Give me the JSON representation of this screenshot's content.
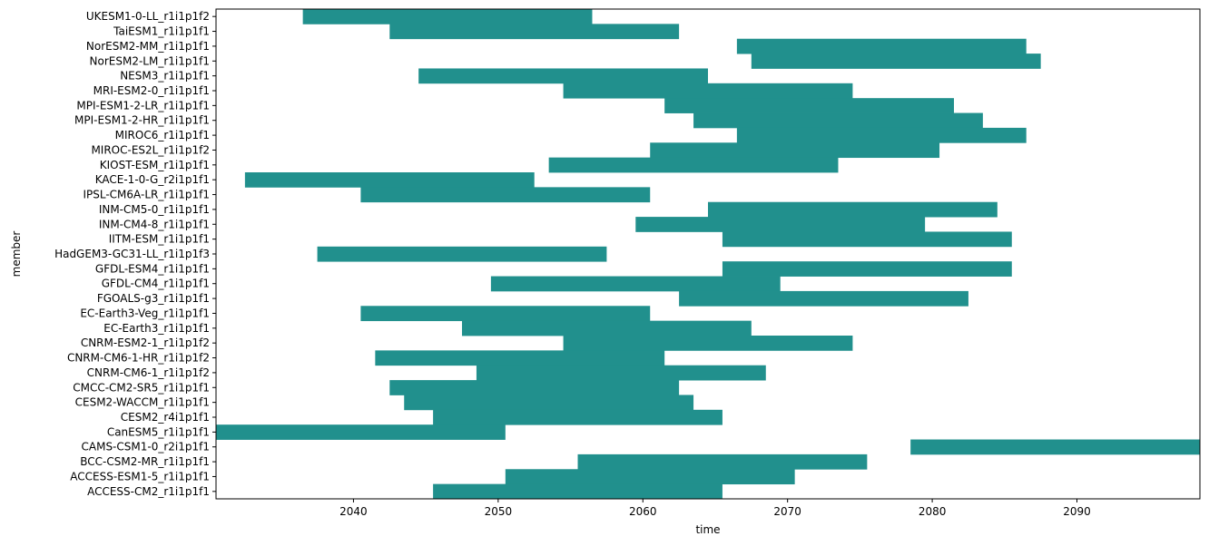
{
  "chart_data": {
    "type": "bar",
    "orientation": "horizontal",
    "title": "",
    "xlabel": "time",
    "ylabel": "member",
    "xlim": [
      2030.5,
      2098.5
    ],
    "xticks": [
      2040,
      2050,
      2060,
      2070,
      2080,
      2090
    ],
    "grid": false,
    "legend": "none",
    "colors": {
      "bar": "#21908d"
    },
    "members": [
      {
        "label": "UKESM1-0-LL_r1i1p1f2",
        "start": 2036.5,
        "end": 2056.5
      },
      {
        "label": "TaiESM1_r1i1p1f1",
        "start": 2042.5,
        "end": 2062.5
      },
      {
        "label": "NorESM2-MM_r1i1p1f1",
        "start": 2066.5,
        "end": 2086.5
      },
      {
        "label": "NorESM2-LM_r1i1p1f1",
        "start": 2067.5,
        "end": 2087.5
      },
      {
        "label": "NESM3_r1i1p1f1",
        "start": 2044.5,
        "end": 2064.5
      },
      {
        "label": "MRI-ESM2-0_r1i1p1f1",
        "start": 2054.5,
        "end": 2074.5
      },
      {
        "label": "MPI-ESM1-2-LR_r1i1p1f1",
        "start": 2061.5,
        "end": 2081.5
      },
      {
        "label": "MPI-ESM1-2-HR_r1i1p1f1",
        "start": 2063.5,
        "end": 2083.5
      },
      {
        "label": "MIROC6_r1i1p1f1",
        "start": 2066.5,
        "end": 2086.5
      },
      {
        "label": "MIROC-ES2L_r1i1p1f2",
        "start": 2060.5,
        "end": 2080.5
      },
      {
        "label": "KIOST-ESM_r1i1p1f1",
        "start": 2053.5,
        "end": 2073.5
      },
      {
        "label": "KACE-1-0-G_r2i1p1f1",
        "start": 2032.5,
        "end": 2052.5
      },
      {
        "label": "IPSL-CM6A-LR_r1i1p1f1",
        "start": 2040.5,
        "end": 2060.5
      },
      {
        "label": "INM-CM5-0_r1i1p1f1",
        "start": 2064.5,
        "end": 2084.5
      },
      {
        "label": "INM-CM4-8_r1i1p1f1",
        "start": 2059.5,
        "end": 2079.5
      },
      {
        "label": "IITM-ESM_r1i1p1f1",
        "start": 2065.5,
        "end": 2085.5
      },
      {
        "label": "HadGEM3-GC31-LL_r1i1p1f3",
        "start": 2037.5,
        "end": 2057.5
      },
      {
        "label": "GFDL-ESM4_r1i1p1f1",
        "start": 2065.5,
        "end": 2085.5
      },
      {
        "label": "GFDL-CM4_r1i1p1f1",
        "start": 2049.5,
        "end": 2069.5
      },
      {
        "label": "FGOALS-g3_r1i1p1f1",
        "start": 2062.5,
        "end": 2082.5
      },
      {
        "label": "EC-Earth3-Veg_r1i1p1f1",
        "start": 2040.5,
        "end": 2060.5
      },
      {
        "label": "EC-Earth3_r1i1p1f1",
        "start": 2047.5,
        "end": 2067.5
      },
      {
        "label": "CNRM-ESM2-1_r1i1p1f2",
        "start": 2054.5,
        "end": 2074.5
      },
      {
        "label": "CNRM-CM6-1-HR_r1i1p1f2",
        "start": 2041.5,
        "end": 2061.5
      },
      {
        "label": "CNRM-CM6-1_r1i1p1f2",
        "start": 2048.5,
        "end": 2068.5
      },
      {
        "label": "CMCC-CM2-SR5_r1i1p1f1",
        "start": 2042.5,
        "end": 2062.5
      },
      {
        "label": "CESM2-WACCM_r1i1p1f1",
        "start": 2043.5,
        "end": 2063.5
      },
      {
        "label": "CESM2_r4i1p1f1",
        "start": 2045.5,
        "end": 2065.5
      },
      {
        "label": "CanESM5_r1i1p1f1",
        "start": 2030.5,
        "end": 2050.5
      },
      {
        "label": "CAMS-CSM1-0_r2i1p1f1",
        "start": 2078.5,
        "end": 2098.5
      },
      {
        "label": "BCC-CSM2-MR_r1i1p1f1",
        "start": 2055.5,
        "end": 2075.5
      },
      {
        "label": "ACCESS-ESM1-5_r1i1p1f1",
        "start": 2050.5,
        "end": 2070.5
      },
      {
        "label": "ACCESS-CM2_r1i1p1f1",
        "start": 2045.5,
        "end": 2065.5
      }
    ]
  }
}
